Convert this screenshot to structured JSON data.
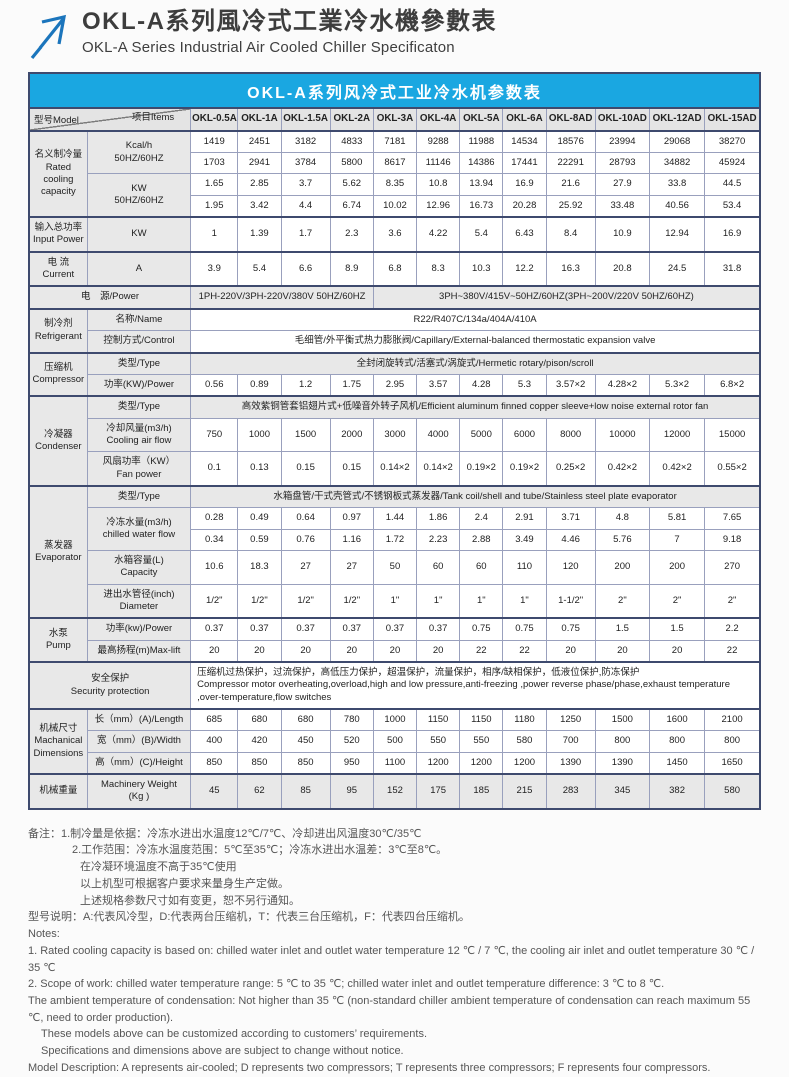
{
  "header": {
    "title_zh": "OKL-A系列風冷式工業冷水機參數表",
    "title_en": "OKL-A Series Industrial Air Cooled Chiller Specificaton"
  },
  "banner": {
    "text": "OKL-A系列风冷式工业冷水机参数表",
    "bg_color": "#1aa7e1"
  },
  "table": {
    "rows": [
      {
        "sec": true,
        "cells": [
          {
            "corner": {
              "model": "型号Model",
              "items": "项目Items"
            },
            "cs": 2,
            "cls": "hdr"
          },
          {
            "t": "OKL-0.5A",
            "cls": "hdr"
          },
          {
            "t": "OKL-1A",
            "cls": "hdr"
          },
          {
            "t": "OKL-1.5A",
            "cls": "hdr"
          },
          {
            "t": "OKL-2A",
            "cls": "hdr"
          },
          {
            "t": "OKL-3A",
            "cls": "hdr"
          },
          {
            "t": "OKL-4A",
            "cls": "hdr"
          },
          {
            "t": "OKL-5A",
            "cls": "hdr"
          },
          {
            "t": "OKL-6A",
            "cls": "hdr"
          },
          {
            "t": "OKL-8AD",
            "cls": "hdr"
          },
          {
            "t": "OKL-10AD",
            "cls": "hdr"
          },
          {
            "t": "OKL-12AD",
            "cls": "hdr"
          },
          {
            "t": "OKL-15AD",
            "cls": "hdr"
          }
        ]
      },
      {
        "sec": true,
        "cells": [
          {
            "t": "名义制冷量\nRated\ncooling\ncapacity",
            "rs": 4,
            "cls": "lbl"
          },
          {
            "t": "Kcal/h\n50HZ/60HZ",
            "rs": 2,
            "cls": "lbl"
          },
          "1419",
          "2451",
          "3182",
          "4833",
          "7181",
          "9288",
          "11988",
          "14534",
          "18576",
          "23994",
          "29068",
          "38270"
        ]
      },
      {
        "cells": [
          "1703",
          "2941",
          "3784",
          "5800",
          "8617",
          "11146",
          "14386",
          "17441",
          "22291",
          "28793",
          "34882",
          "45924"
        ]
      },
      {
        "cells": [
          {
            "t": "KW\n50HZ/60HZ",
            "rs": 2,
            "cls": "lbl"
          },
          "1.65",
          "2.85",
          "3.7",
          "5.62",
          "8.35",
          "10.8",
          "13.94",
          "16.9",
          "21.6",
          "27.9",
          "33.8",
          "44.5"
        ]
      },
      {
        "cells": [
          "1.95",
          "3.42",
          "4.4",
          "6.74",
          "10.02",
          "12.96",
          "16.73",
          "20.28",
          "25.92",
          "33.48",
          "40.56",
          "53.4"
        ]
      },
      {
        "sec": true,
        "cells": [
          {
            "t": "输入总功率\nInput Power",
            "cls": "lbl"
          },
          {
            "t": "KW",
            "cls": "lbl"
          },
          "1",
          "1.39",
          "1.7",
          "2.3",
          "3.6",
          "4.22",
          "5.4",
          "6.43",
          "8.4",
          "10.9",
          "12.94",
          "16.9"
        ]
      },
      {
        "sec": true,
        "cells": [
          {
            "t": "电 流\nCurrent",
            "cls": "lbl"
          },
          {
            "t": "A",
            "cls": "lbl"
          },
          "3.9",
          "5.4",
          "6.6",
          "8.9",
          "6.8",
          "8.3",
          "10.3",
          "12.2",
          "16.3",
          "20.8",
          "24.5",
          "31.8"
        ]
      },
      {
        "sec": true,
        "cells": [
          {
            "t": "电　源/Power",
            "cs": 2,
            "cls": "lbl"
          },
          {
            "t": "1PH-220V/3PH-220V/380V 50HZ/60HZ",
            "cs": 4,
            "cls": "shade"
          },
          {
            "t": "3PH~380V/415V~50HZ/60HZ(3PH~200V/220V  50HZ/60HZ)",
            "cs": 8,
            "cls": "shade"
          }
        ]
      },
      {
        "sec": true,
        "cells": [
          {
            "t": "制冷剂\nRefrigerant",
            "rs": 2,
            "cls": "lbl"
          },
          {
            "t": "名称/Name",
            "cls": "lbl"
          },
          {
            "t": "R22/R407C/134a/404A/410A",
            "cs": 12
          }
        ]
      },
      {
        "cells": [
          {
            "t": "控制方式/Control",
            "cls": "lbl"
          },
          {
            "t": "毛细管/外平衡式热力膨胀阀/Capillary/External-balanced thermostatic expansion valve",
            "cs": 12
          }
        ]
      },
      {
        "sec": true,
        "cells": [
          {
            "t": "压缩机\nCompressor",
            "rs": 2,
            "cls": "lbl"
          },
          {
            "t": "类型/Type",
            "cls": "lbl"
          },
          {
            "t": "全封闭旋转式/活塞式/涡旋式/Hermetic rotary/pison/scroll",
            "cs": 12,
            "cls": "shade"
          }
        ]
      },
      {
        "cells": [
          {
            "t": "功率(KW)/Power",
            "cls": "lbl"
          },
          "0.56",
          "0.89",
          "1.2",
          "1.75",
          "2.95",
          "3.57",
          "4.28",
          "5.3",
          "3.57×2",
          "4.28×2",
          "5.3×2",
          "6.8×2"
        ]
      },
      {
        "sec": true,
        "cells": [
          {
            "t": "冷凝器\nCondenser",
            "rs": 3,
            "cls": "lbl"
          },
          {
            "t": "类型/Type",
            "cls": "lbl"
          },
          {
            "t": "高效紫铜管套铝翅片式+低噪音外转子风机/Efficient aluminum finned copper sleeve+low noise external rotor fan",
            "cs": 12,
            "cls": "shade"
          }
        ]
      },
      {
        "cells": [
          {
            "t": "冷却风量(m3/h)\nCooling air flow",
            "cls": "lbl"
          },
          "750",
          "1000",
          "1500",
          "2000",
          "3000",
          "4000",
          "5000",
          "6000",
          "8000",
          "10000",
          "12000",
          "15000"
        ]
      },
      {
        "cells": [
          {
            "t": "风扇功率（KW）\nFan power",
            "cls": "lbl"
          },
          "0.1",
          "0.13",
          "0.15",
          "0.15",
          "0.14×2",
          "0.14×2",
          "0.19×2",
          "0.19×2",
          "0.25×2",
          "0.42×2",
          "0.42×2",
          "0.55×2"
        ]
      },
      {
        "sec": true,
        "cells": [
          {
            "t": "蒸发器\nEvaporator",
            "rs": 5,
            "cls": "lbl"
          },
          {
            "t": "类型/Type",
            "cls": "lbl"
          },
          {
            "t": "水箱盘管/干式壳管式/不锈钢板式蒸发器/Tank coil/shell and tube/Stainless steel plate evaporator",
            "cs": 12,
            "cls": "shade"
          }
        ]
      },
      {
        "cells": [
          {
            "t": "冷冻水量(m3/h)\nchilled water flow",
            "rs": 2,
            "cls": "lbl"
          },
          "0.28",
          "0.49",
          "0.64",
          "0.97",
          "1.44",
          "1.86",
          "2.4",
          "2.91",
          "3.71",
          "4.8",
          "5.81",
          "7.65"
        ]
      },
      {
        "cells": [
          "0.34",
          "0.59",
          "0.76",
          "1.16",
          "1.72",
          "2.23",
          "2.88",
          "3.49",
          "4.46",
          "5.76",
          "7",
          "9.18"
        ]
      },
      {
        "cells": [
          {
            "t": "水箱容量(L)\nCapacity",
            "cls": "lbl"
          },
          "10.6",
          "18.3",
          "27",
          "27",
          "50",
          "60",
          "60",
          "110",
          "120",
          "200",
          "200",
          "270"
        ]
      },
      {
        "cells": [
          {
            "t": "进出水管径(inch)\nDiameter",
            "cls": "lbl"
          },
          "1/2\"",
          "1/2\"",
          "1/2\"",
          "1/2\"",
          "1\"",
          "1\"",
          "1\"",
          "1\"",
          "1-1/2\"",
          "2\"",
          "2\"",
          "2\""
        ]
      },
      {
        "sec": true,
        "cells": [
          {
            "t": "水泵\nPump",
            "rs": 2,
            "cls": "lbl"
          },
          {
            "t": "功率(kw)/Power",
            "cls": "lbl"
          },
          "0.37",
          "0.37",
          "0.37",
          "0.37",
          "0.37",
          "0.37",
          "0.75",
          "0.75",
          "0.75",
          "1.5",
          "1.5",
          "2.2"
        ]
      },
      {
        "cells": [
          {
            "t": "最高扬程(m)Max-lift",
            "cls": "lbl"
          },
          "20",
          "20",
          "20",
          "20",
          "20",
          "20",
          "22",
          "22",
          "20",
          "20",
          "20",
          "22"
        ]
      },
      {
        "sec": true,
        "cells": [
          {
            "t": "安全保护\nSecurity protection",
            "cs": 2,
            "cls": "lbl"
          },
          {
            "t": "压缩机过热保护，过流保护，高低压力保护，超温保护，流量保护，相序/缺相保护，低液位保护,防冻保护\nCompressor motor overheating,overload,high and low pressure,anti-freezing ,power reverse phase/phase,exhaust temperature ,over-temperature,flow switches",
            "cs": 12,
            "cls": "left"
          }
        ]
      },
      {
        "sec": true,
        "cells": [
          {
            "t": "机械尺寸\nMachanical\nDimensions",
            "rs": 3,
            "cls": "lbl"
          },
          {
            "t": "长（mm）(A)/Length",
            "cls": "lbl"
          },
          "685",
          "680",
          "680",
          "780",
          "1000",
          "1150",
          "1150",
          "1180",
          "1250",
          "1500",
          "1600",
          "2100"
        ]
      },
      {
        "cells": [
          {
            "t": "宽（mm）(B)/Width",
            "cls": "lbl"
          },
          "400",
          "420",
          "450",
          "520",
          "500",
          "550",
          "550",
          "580",
          "700",
          "800",
          "800",
          "800"
        ]
      },
      {
        "cells": [
          {
            "t": "高（mm）(C)/Height",
            "cls": "lbl"
          },
          "850",
          "850",
          "850",
          "950",
          "1100",
          "1200",
          "1200",
          "1200",
          "1390",
          "1390",
          "1450",
          "1650"
        ]
      },
      {
        "sec": true,
        "cells": [
          {
            "t": "机械重量",
            "cls": "lbl"
          },
          {
            "t": "Machinery Weight\n(Kg )",
            "cls": "lbl"
          },
          {
            "t": "45",
            "cls": "shade"
          },
          {
            "t": "62",
            "cls": "shade"
          },
          {
            "t": "85",
            "cls": "shade"
          },
          {
            "t": "95",
            "cls": "shade"
          },
          {
            "t": "152",
            "cls": "shade"
          },
          {
            "t": "175",
            "cls": "shade"
          },
          {
            "t": "185",
            "cls": "shade"
          },
          {
            "t": "215",
            "cls": "shade"
          },
          {
            "t": "283",
            "cls": "shade"
          },
          {
            "t": "345",
            "cls": "shade"
          },
          {
            "t": "382",
            "cls": "shade"
          },
          {
            "t": "580",
            "cls": "shade"
          }
        ]
      }
    ]
  },
  "notes": {
    "zh": [
      "备注：1.制冷量是依据：冷冻水进出水温度12℃/7℃、冷却进出风温度30℃/35℃",
      "2.工作范围：冷冻水温度范围：5℃至35℃；冷冻水进出水温差：3℃至8℃。",
      "在冷凝环境温度不高于35℃使用",
      "以上机型可根据客户要求来量身生产定做。",
      "上述规格参数尺寸如有变更，恕不另行通知。",
      "型号说明：A:代表风冷型，D:代表两台压缩机，T：代表三台压缩机，F：代表四台压缩机。"
    ],
    "en": [
      "Notes:",
      "1. Rated cooling capacity is based on: chilled water inlet and outlet water temperature 12 ℃ / 7 ℃, the cooling air inlet and outlet temperature 30 ℃ / 35 ℃",
      "2. Scope of work: chilled water temperature range: 5 ℃ to 35 ℃; chilled water inlet and outlet temperature difference: 3 ℃ to 8 ℃.",
      "The ambient temperature of condensation: Not higher than 35 ℃ (non-standard chiller ambient temperature of condensation can reach maximum 55 ℃, need to order production).",
      "These models above can be customized according to customers’ requirements.",
      "Specifications and dimensions above are subject to change without notice.",
      "Model Description: A represents air-cooled; D represents two compressors; T represents three compressors; F represents four compressors."
    ]
  }
}
